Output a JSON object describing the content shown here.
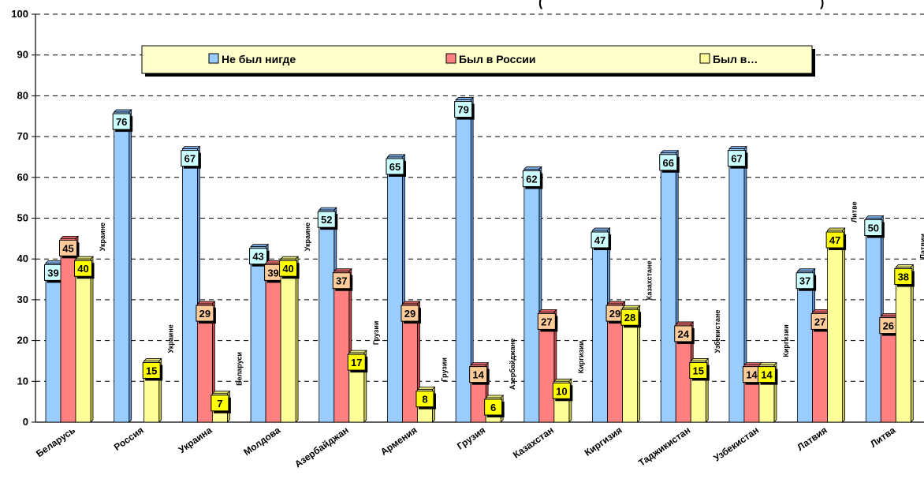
{
  "chart_data": {
    "type": "bar",
    "title": "(",
    "title_end": ")",
    "categories": [
      "Беларусь",
      "Россия",
      "Украина",
      "Молдова",
      "Азербайджан",
      "Армения",
      "Грузия",
      "Казахстан",
      "Киргизия",
      "Таджикистан",
      "Узбекистан",
      "Латвия",
      "Литва"
    ],
    "series": [
      {
        "name": "Не был нигде",
        "values": [
          39,
          76,
          67,
          43,
          52,
          65,
          79,
          62,
          47,
          66,
          67,
          37,
          50
        ]
      },
      {
        "name": "Был в России",
        "values": [
          45,
          null,
          29,
          39,
          37,
          29,
          14,
          27,
          29,
          24,
          14,
          27,
          26
        ]
      },
      {
        "name": "Был в…",
        "values": [
          40,
          15,
          7,
          40,
          17,
          8,
          6,
          10,
          28,
          15,
          14,
          47,
          38
        ]
      }
    ],
    "third_series_annotations": [
      "Украине",
      "Украине",
      "Беларуси",
      "Украине",
      "Грузии",
      "Грузии",
      "Азербайджане",
      "Киргизии",
      "Казахстане",
      "Узбекистане",
      "Киргизии",
      "Литве",
      "Латвии"
    ],
    "yticks": [
      0,
      10,
      20,
      30,
      40,
      50,
      60,
      70,
      80,
      90,
      100
    ],
    "ylim": [
      0,
      100
    ],
    "grid": "horizontal dashed",
    "legend_position": "top"
  },
  "colors": {
    "series": [
      "#99ccff",
      "#ff8080",
      "#ffff99"
    ],
    "label_boxes": [
      "#ccffff",
      "#ffcc99",
      "#ffff00"
    ],
    "legend_bg": "#ffffcc"
  }
}
